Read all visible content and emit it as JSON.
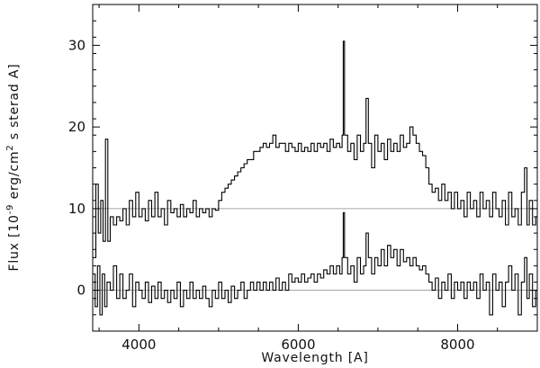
{
  "chart_data": {
    "type": "line",
    "title": "",
    "xlabel": "Wavelength [A]",
    "ylabel": {
      "prefix": "Flux [10",
      "exp1": "-9",
      "mid": " erg/cm",
      "exp2": "2",
      "suffix": " s sterad A]"
    },
    "xlim": [
      3420,
      9000
    ],
    "ylim": [
      -5,
      35
    ],
    "xticks": [
      4000,
      6000,
      8000
    ],
    "xtick_labels": [
      "4000",
      "6000",
      "8000"
    ],
    "yticks": [
      0,
      10,
      20,
      30
    ],
    "ytick_labels": [
      "0",
      "10",
      "20",
      "30"
    ],
    "reference_lines": [
      0,
      10
    ],
    "grid": false,
    "series": [
      {
        "points": [
          [
            3420,
            4
          ],
          [
            3460,
            13
          ],
          [
            3490,
            7
          ],
          [
            3520,
            11
          ],
          [
            3550,
            6
          ],
          [
            3580,
            18.5
          ],
          [
            3610,
            6
          ],
          [
            3640,
            9
          ],
          [
            3680,
            8
          ],
          [
            3720,
            9
          ],
          [
            3760,
            8.5
          ],
          [
            3800,
            10
          ],
          [
            3840,
            8
          ],
          [
            3880,
            11
          ],
          [
            3920,
            9
          ],
          [
            3960,
            12
          ],
          [
            4000,
            9
          ],
          [
            4040,
            10
          ],
          [
            4080,
            8.5
          ],
          [
            4120,
            11
          ],
          [
            4160,
            9
          ],
          [
            4200,
            12
          ],
          [
            4240,
            9
          ],
          [
            4280,
            10
          ],
          [
            4320,
            8
          ],
          [
            4360,
            11
          ],
          [
            4400,
            9.5
          ],
          [
            4440,
            10
          ],
          [
            4480,
            9
          ],
          [
            4520,
            10.5
          ],
          [
            4560,
            9
          ],
          [
            4600,
            10
          ],
          [
            4640,
            9.5
          ],
          [
            4680,
            11
          ],
          [
            4720,
            9
          ],
          [
            4760,
            10
          ],
          [
            4800,
            9.5
          ],
          [
            4840,
            10
          ],
          [
            4880,
            9
          ],
          [
            4920,
            10
          ],
          [
            4960,
            9.8
          ],
          [
            5000,
            11
          ],
          [
            5040,
            12
          ],
          [
            5080,
            12.5
          ],
          [
            5120,
            13
          ],
          [
            5160,
            13.5
          ],
          [
            5200,
            14
          ],
          [
            5240,
            14.5
          ],
          [
            5280,
            15
          ],
          [
            5320,
            15.5
          ],
          [
            5360,
            16
          ],
          [
            5400,
            16
          ],
          [
            5440,
            17
          ],
          [
            5480,
            17
          ],
          [
            5520,
            17.5
          ],
          [
            5560,
            18
          ],
          [
            5600,
            17.5
          ],
          [
            5640,
            18
          ],
          [
            5680,
            19
          ],
          [
            5720,
            17.5
          ],
          [
            5760,
            18
          ],
          [
            5800,
            18
          ],
          [
            5840,
            17
          ],
          [
            5880,
            18
          ],
          [
            5920,
            17.5
          ],
          [
            5960,
            17
          ],
          [
            6000,
            18
          ],
          [
            6040,
            17
          ],
          [
            6080,
            17.5
          ],
          [
            6120,
            17
          ],
          [
            6160,
            18
          ],
          [
            6200,
            17
          ],
          [
            6240,
            18
          ],
          [
            6280,
            17.5
          ],
          [
            6320,
            18
          ],
          [
            6360,
            17
          ],
          [
            6400,
            18.5
          ],
          [
            6440,
            17.5
          ],
          [
            6480,
            18
          ],
          [
            6520,
            17.5
          ],
          [
            6550,
            19
          ],
          [
            6565,
            30.5
          ],
          [
            6580,
            19
          ],
          [
            6620,
            17
          ],
          [
            6660,
            18
          ],
          [
            6700,
            16
          ],
          [
            6740,
            19
          ],
          [
            6780,
            17
          ],
          [
            6820,
            18
          ],
          [
            6850,
            23.5
          ],
          [
            6880,
            18
          ],
          [
            6920,
            15
          ],
          [
            6960,
            19
          ],
          [
            7000,
            17
          ],
          [
            7040,
            18
          ],
          [
            7080,
            16
          ],
          [
            7120,
            18.5
          ],
          [
            7160,
            17
          ],
          [
            7200,
            18
          ],
          [
            7240,
            17
          ],
          [
            7280,
            19
          ],
          [
            7320,
            17.5
          ],
          [
            7360,
            18
          ],
          [
            7400,
            20
          ],
          [
            7440,
            19
          ],
          [
            7480,
            18
          ],
          [
            7520,
            17
          ],
          [
            7560,
            16.5
          ],
          [
            7600,
            15
          ],
          [
            7640,
            13
          ],
          [
            7680,
            12
          ],
          [
            7720,
            12.5
          ],
          [
            7760,
            11
          ],
          [
            7800,
            13
          ],
          [
            7840,
            11
          ],
          [
            7880,
            12
          ],
          [
            7920,
            10
          ],
          [
            7960,
            12
          ],
          [
            8000,
            10
          ],
          [
            8040,
            11
          ],
          [
            8080,
            9
          ],
          [
            8120,
            12
          ],
          [
            8160,
            10
          ],
          [
            8200,
            11
          ],
          [
            8240,
            9
          ],
          [
            8280,
            12
          ],
          [
            8320,
            10
          ],
          [
            8360,
            11
          ],
          [
            8400,
            9
          ],
          [
            8440,
            12
          ],
          [
            8480,
            10
          ],
          [
            8520,
            9
          ],
          [
            8560,
            11
          ],
          [
            8600,
            8
          ],
          [
            8640,
            12
          ],
          [
            8680,
            9
          ],
          [
            8720,
            10
          ],
          [
            8760,
            8
          ],
          [
            8800,
            12
          ],
          [
            8840,
            15
          ],
          [
            8870,
            8
          ],
          [
            8900,
            11
          ],
          [
            8940,
            8
          ],
          [
            8980,
            9
          ],
          [
            9000,
            9
          ]
        ]
      },
      {
        "points": [
          [
            3420,
            2
          ],
          [
            3450,
            -2
          ],
          [
            3480,
            3
          ],
          [
            3510,
            -3
          ],
          [
            3540,
            2
          ],
          [
            3570,
            -2
          ],
          [
            3600,
            1
          ],
          [
            3640,
            0
          ],
          [
            3680,
            3
          ],
          [
            3720,
            -1
          ],
          [
            3760,
            2
          ],
          [
            3800,
            -1
          ],
          [
            3840,
            0
          ],
          [
            3880,
            2
          ],
          [
            3920,
            -2
          ],
          [
            3960,
            1
          ],
          [
            4000,
            0
          ],
          [
            4040,
            -1
          ],
          [
            4080,
            1
          ],
          [
            4120,
            -1.5
          ],
          [
            4160,
            0.5
          ],
          [
            4200,
            -1
          ],
          [
            4240,
            1
          ],
          [
            4280,
            -1
          ],
          [
            4320,
            0
          ],
          [
            4360,
            -1.5
          ],
          [
            4400,
            0
          ],
          [
            4440,
            -1
          ],
          [
            4480,
            1
          ],
          [
            4520,
            -2
          ],
          [
            4560,
            0
          ],
          [
            4600,
            -1
          ],
          [
            4640,
            1
          ],
          [
            4680,
            -1
          ],
          [
            4720,
            0
          ],
          [
            4760,
            -1
          ],
          [
            4800,
            0.5
          ],
          [
            4840,
            -1
          ],
          [
            4880,
            -2
          ],
          [
            4920,
            0
          ],
          [
            4960,
            -1
          ],
          [
            5000,
            1
          ],
          [
            5040,
            -1
          ],
          [
            5080,
            0
          ],
          [
            5120,
            -1.5
          ],
          [
            5160,
            0.5
          ],
          [
            5200,
            -1
          ],
          [
            5240,
            0
          ],
          [
            5280,
            1
          ],
          [
            5320,
            -1
          ],
          [
            5360,
            0
          ],
          [
            5400,
            1
          ],
          [
            5440,
            0
          ],
          [
            5480,
            1
          ],
          [
            5520,
            0
          ],
          [
            5560,
            1
          ],
          [
            5600,
            0
          ],
          [
            5640,
            1
          ],
          [
            5680,
            0
          ],
          [
            5720,
            1.5
          ],
          [
            5760,
            0
          ],
          [
            5800,
            1
          ],
          [
            5840,
            0
          ],
          [
            5880,
            2
          ],
          [
            5920,
            1
          ],
          [
            5960,
            1.5
          ],
          [
            6000,
            1
          ],
          [
            6040,
            2
          ],
          [
            6080,
            1
          ],
          [
            6120,
            1.5
          ],
          [
            6160,
            2
          ],
          [
            6200,
            1
          ],
          [
            6240,
            2
          ],
          [
            6280,
            1.5
          ],
          [
            6320,
            2.5
          ],
          [
            6360,
            2
          ],
          [
            6400,
            3
          ],
          [
            6440,
            2
          ],
          [
            6480,
            3
          ],
          [
            6520,
            2
          ],
          [
            6550,
            4
          ],
          [
            6565,
            9.5
          ],
          [
            6580,
            4
          ],
          [
            6620,
            2
          ],
          [
            6660,
            3
          ],
          [
            6700,
            1
          ],
          [
            6740,
            4
          ],
          [
            6780,
            2
          ],
          [
            6820,
            3
          ],
          [
            6850,
            7
          ],
          [
            6880,
            4
          ],
          [
            6920,
            2
          ],
          [
            6960,
            4
          ],
          [
            7000,
            3
          ],
          [
            7040,
            5
          ],
          [
            7080,
            3
          ],
          [
            7120,
            5.5
          ],
          [
            7160,
            4
          ],
          [
            7200,
            5
          ],
          [
            7240,
            3
          ],
          [
            7280,
            5
          ],
          [
            7320,
            3.5
          ],
          [
            7360,
            4
          ],
          [
            7400,
            3
          ],
          [
            7440,
            4
          ],
          [
            7480,
            3
          ],
          [
            7520,
            2.5
          ],
          [
            7560,
            3
          ],
          [
            7600,
            2
          ],
          [
            7640,
            1
          ],
          [
            7680,
            0
          ],
          [
            7720,
            1.5
          ],
          [
            7760,
            -1
          ],
          [
            7800,
            1
          ],
          [
            7840,
            0
          ],
          [
            7880,
            2
          ],
          [
            7920,
            -1
          ],
          [
            7960,
            1
          ],
          [
            8000,
            0
          ],
          [
            8040,
            1
          ],
          [
            8080,
            -1
          ],
          [
            8120,
            1
          ],
          [
            8160,
            0
          ],
          [
            8200,
            1
          ],
          [
            8240,
            -1
          ],
          [
            8280,
            2
          ],
          [
            8320,
            0
          ],
          [
            8360,
            1
          ],
          [
            8400,
            -3
          ],
          [
            8440,
            2
          ],
          [
            8480,
            0
          ],
          [
            8520,
            1
          ],
          [
            8560,
            -2
          ],
          [
            8600,
            1
          ],
          [
            8640,
            3
          ],
          [
            8680,
            0
          ],
          [
            8720,
            2
          ],
          [
            8760,
            -3
          ],
          [
            8800,
            1
          ],
          [
            8840,
            4
          ],
          [
            8870,
            -1
          ],
          [
            8900,
            2
          ],
          [
            8940,
            -2
          ],
          [
            8980,
            0
          ],
          [
            9000,
            0
          ]
        ]
      }
    ]
  }
}
